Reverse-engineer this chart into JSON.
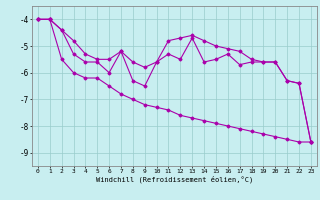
{
  "x": [
    0,
    1,
    2,
    3,
    4,
    5,
    6,
    7,
    8,
    9,
    10,
    11,
    12,
    13,
    14,
    15,
    16,
    17,
    18,
    19,
    20,
    21,
    22,
    23
  ],
  "line1": [
    -4.0,
    -4.0,
    -4.4,
    -4.8,
    -5.3,
    -5.5,
    -5.5,
    -5.2,
    -5.6,
    -5.8,
    -5.6,
    -4.8,
    -4.7,
    -4.6,
    -4.8,
    -5.0,
    -5.1,
    -5.2,
    -5.5,
    -5.6,
    -5.6,
    -6.3,
    -6.4,
    -8.6
  ],
  "line2": [
    -4.0,
    -4.0,
    -4.4,
    -5.3,
    -5.6,
    -5.6,
    -6.0,
    -5.2,
    -6.3,
    -6.5,
    -5.6,
    -5.3,
    -5.5,
    -4.7,
    -5.6,
    -5.5,
    -5.3,
    -5.7,
    -5.6,
    -5.6,
    -5.6,
    -6.3,
    -6.4,
    -8.6
  ],
  "line3": [
    -4.0,
    -4.0,
    -5.5,
    -6.0,
    -6.2,
    -6.2,
    -6.5,
    -6.8,
    -7.0,
    -7.2,
    -7.3,
    -7.4,
    -7.6,
    -7.7,
    -7.8,
    -7.9,
    -8.0,
    -8.1,
    -8.2,
    -8.3,
    -8.4,
    -8.5,
    -8.6,
    -8.6
  ],
  "xlim": [
    -0.5,
    23.5
  ],
  "ylim": [
    -9.5,
    -3.5
  ],
  "yticks": [
    -9,
    -8,
    -7,
    -6,
    -5,
    -4
  ],
  "xticks": [
    0,
    1,
    2,
    3,
    4,
    5,
    6,
    7,
    8,
    9,
    10,
    11,
    12,
    13,
    14,
    15,
    16,
    17,
    18,
    19,
    20,
    21,
    22,
    23
  ],
  "xlabel": "Windchill (Refroidissement éolien,°C)",
  "bg_color": "#c8eef0",
  "line_color": "#aa00aa",
  "grid_color": "#99cccc"
}
